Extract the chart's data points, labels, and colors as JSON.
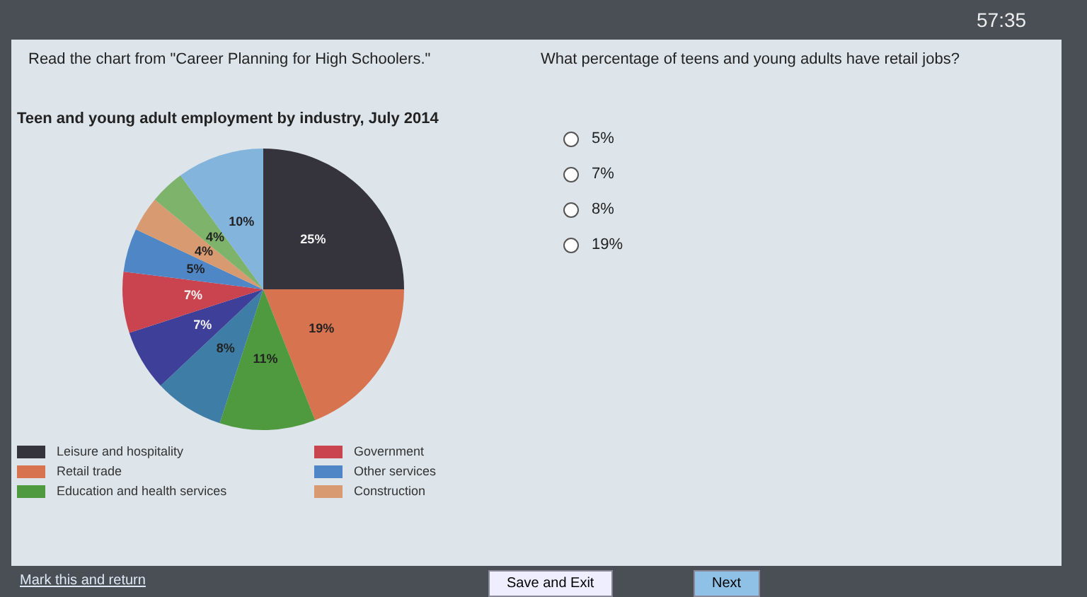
{
  "chart_data": {
    "type": "pie",
    "title": "Teen and young adult employment by industry, July 2014",
    "categories": [
      "Leisure and hospitality",
      "Retail trade",
      "Education and health services",
      null,
      null,
      "Government",
      "Other services",
      "Construction",
      null,
      null
    ],
    "values": [
      25,
      19,
      11,
      8,
      7,
      7,
      5,
      4,
      4,
      10
    ],
    "colors": [
      "#35333b",
      "#d8734f",
      "#4f9a3e",
      "#3e7ea6",
      "#3d3f98",
      "#c9444f",
      "#4f86c6",
      "#d89a70",
      "#7db36b",
      "#82b4dc"
    ],
    "value_labels": [
      "25%",
      "19%",
      "11%",
      "8%",
      "7%",
      "7%",
      "5%",
      "4%",
      "4%",
      "10%"
    ],
    "legend": "bottom",
    "annotations": [
      "57:35",
      "Read the chart from \"Career Planning for High Schoolers.\"",
      "What percentage of teens and young adults have retail jobs?",
      "5%",
      "7%",
      "8%",
      "19%",
      "Mark this and return",
      "Save and Exit",
      "Next"
    ]
  }
}
